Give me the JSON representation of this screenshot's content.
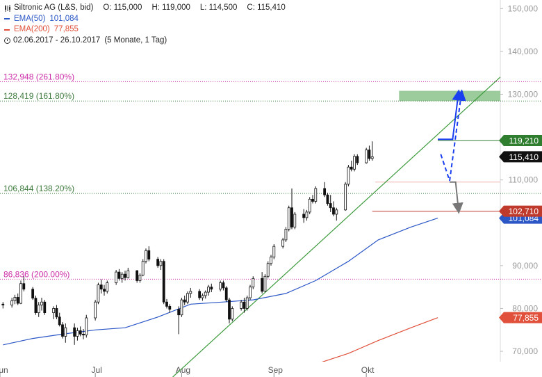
{
  "header": {
    "title": "Siltronic AG (L&S, bid)",
    "ohlc": {
      "open": "O: 115,000",
      "high": "H: 119,000",
      "low": "L: 114,500",
      "close": "C: 115,410"
    },
    "ema50": {
      "label": "EMA(50)",
      "value": "101,084",
      "color": "#2a56c6"
    },
    "ema200": {
      "label": "EMA(200)",
      "value": "77,855",
      "color": "#e0503a"
    },
    "date_range": "02.06.2017 - 26.10.2017",
    "period": "(5 Monate, 1 Tag)"
  },
  "chart_data": {
    "type": "candlestick",
    "ylim": [
      64000,
      152000
    ],
    "y_ticks": [
      {
        "value": 150000,
        "label": "150,000"
      },
      {
        "value": 140000,
        "label": "140,000"
      },
      {
        "value": 130000,
        "label": "130,000"
      },
      {
        "value": 110000,
        "label": "110,000"
      },
      {
        "value": 90000,
        "label": "90,000"
      },
      {
        "value": 80000,
        "label": "80,000"
      },
      {
        "value": 70000,
        "label": "70,000"
      }
    ],
    "x_ticks": [
      {
        "date": "2017-06-01",
        "label": "Jun"
      },
      {
        "date": "2017-07-03",
        "label": "Jul"
      },
      {
        "date": "2017-08-01",
        "label": "Aug"
      },
      {
        "date": "2017-09-01",
        "label": "Sep"
      },
      {
        "date": "2017-10-02",
        "label": "Okt"
      }
    ],
    "date_range": [
      "2017-06-01",
      "2017-11-16"
    ],
    "candles_start": "2017-06-02",
    "candles": [
      [
        81000,
        81500,
        80000,
        80800
      ],
      [
        80800,
        82500,
        80200,
        81800
      ],
      [
        81800,
        83200,
        81000,
        82600
      ],
      [
        82600,
        83500,
        80800,
        81200
      ],
      [
        81200,
        86500,
        81000,
        85800
      ],
      [
        85800,
        87500,
        84000,
        84500
      ],
      [
        84500,
        85000,
        82000,
        82400
      ],
      [
        82400,
        83000,
        78500,
        79000
      ],
      [
        79000,
        81500,
        78000,
        80800
      ],
      [
        80800,
        82500,
        79500,
        81500
      ],
      [
        81500,
        82000,
        78500,
        79000
      ],
      [
        79000,
        80500,
        77500,
        80000
      ],
      [
        80000,
        80800,
        77500,
        78000
      ],
      [
        78000,
        79000,
        75800,
        76200
      ],
      [
        76200,
        76800,
        73000,
        73500
      ],
      [
        73500,
        76500,
        72000,
        75500
      ],
      [
        75500,
        76500,
        71500,
        73500
      ],
      [
        73500,
        75500,
        72500,
        74800
      ],
      [
        74800,
        75800,
        73500,
        74000
      ],
      [
        74000,
        75200,
        72800,
        73800
      ],
      [
        73800,
        78500,
        73200,
        77800
      ],
      [
        77800,
        82000,
        77200,
        81500
      ],
      [
        81500,
        86000,
        81000,
        85500
      ],
      [
        85500,
        86800,
        83500,
        84500
      ],
      [
        84500,
        85500,
        83000,
        84000
      ],
      [
        84000,
        86500,
        83500,
        86000
      ],
      [
        86000,
        89000,
        85500,
        88500
      ],
      [
        88500,
        89200,
        86500,
        87000
      ],
      [
        87000,
        88500,
        86000,
        88000
      ],
      [
        88000,
        88800,
        86500,
        87200
      ],
      [
        87200,
        89500,
        87000,
        88800
      ],
      [
        88800,
        89000,
        86000,
        86500
      ],
      [
        86500,
        88200,
        86000,
        87800
      ],
      [
        87800,
        91500,
        87500,
        91000
      ],
      [
        91000,
        94000,
        90500,
        93500
      ],
      [
        93500,
        94500,
        91000,
        91500
      ],
      [
        91500,
        92000,
        89500,
        90000
      ],
      [
        90000,
        91500,
        89000,
        91000
      ],
      [
        91000,
        91500,
        81000,
        81500
      ],
      [
        81500,
        82200,
        80000,
        80500
      ],
      [
        80500,
        81000,
        79000,
        79800
      ],
      [
        79800,
        80500,
        74000,
        78500
      ],
      [
        78500,
        82500,
        78000,
        82000
      ],
      [
        82000,
        83000,
        80800,
        81500
      ],
      [
        81500,
        84000,
        81000,
        83500
      ],
      [
        83500,
        84800,
        82500,
        84000
      ],
      [
        84000,
        84500,
        82000,
        82500
      ],
      [
        82500,
        83500,
        81800,
        83000
      ],
      [
        83000,
        84200,
        82300,
        83800
      ],
      [
        83800,
        85500,
        83000,
        85000
      ],
      [
        85000,
        85800,
        83800,
        84500
      ],
      [
        84500,
        86500,
        84000,
        86000
      ],
      [
        86000,
        86500,
        84200,
        84800
      ],
      [
        84800,
        85200,
        81500,
        82000
      ],
      [
        82000,
        82500,
        76500,
        77500
      ],
      [
        77500,
        80500,
        77000,
        80000
      ],
      [
        80000,
        82000,
        79500,
        81500
      ],
      [
        81500,
        82500,
        79000,
        80000
      ],
      [
        80000,
        83000,
        79500,
        82500
      ],
      [
        82500,
        85500,
        82000,
        85000
      ],
      [
        85000,
        87500,
        84500,
        87000
      ],
      [
        87000,
        88500,
        83500,
        84000
      ],
      [
        84000,
        88000,
        83800,
        87500
      ],
      [
        87500,
        91000,
        87000,
        90500
      ],
      [
        90500,
        92500,
        90000,
        92000
      ],
      [
        92000,
        95000,
        91500,
        94500
      ],
      [
        94500,
        96500,
        94000,
        96000
      ],
      [
        96000,
        99000,
        95500,
        98500
      ],
      [
        98500,
        104000,
        98000,
        103500
      ],
      [
        103500,
        108000,
        98500,
        99000
      ],
      [
        99000,
        102500,
        98500,
        102000
      ],
      [
        102000,
        103200,
        100000,
        101200
      ],
      [
        101200,
        103000,
        100500,
        102500
      ],
      [
        102500,
        106000,
        102000,
        105500
      ],
      [
        105500,
        106500,
        104500,
        105000
      ],
      [
        105000,
        108500,
        104500,
        108000
      ],
      [
        108000,
        109500,
        106000,
        106500
      ],
      [
        106500,
        107000,
        104000,
        104500
      ],
      [
        104500,
        106500,
        102500,
        103500
      ],
      [
        103500,
        105000,
        101500,
        102000
      ],
      [
        102000,
        103500,
        100500,
        103000
      ],
      [
        103000,
        109500,
        102800,
        109000
      ],
      [
        109000,
        113500,
        108500,
        113000
      ],
      [
        113000,
        114500,
        112000,
        112500
      ],
      [
        112500,
        116000,
        112000,
        115500
      ],
      [
        115500,
        116000,
        113500,
        114000
      ],
      [
        114000,
        117500,
        113800,
        117000
      ],
      [
        117000,
        118000,
        114500,
        115000
      ],
      [
        115000,
        119000,
        114500,
        115410
      ]
    ],
    "ema50": [
      [
        "2017-06-02",
        71500
      ],
      [
        "2017-06-12",
        73000
      ],
      [
        "2017-06-22",
        74000
      ],
      [
        "2017-07-03",
        75000
      ],
      [
        "2017-07-13",
        75500
      ],
      [
        "2017-07-24",
        78000
      ],
      [
        "2017-08-04",
        81000
      ],
      [
        "2017-08-15",
        81500
      ],
      [
        "2017-08-25",
        82000
      ],
      [
        "2017-09-05",
        83500
      ],
      [
        "2017-09-15",
        86500
      ],
      [
        "2017-09-26",
        91000
      ],
      [
        "2017-10-06",
        96000
      ],
      [
        "2017-10-17",
        99000
      ],
      [
        "2017-10-26",
        101084
      ]
    ],
    "ema200": [
      [
        "2017-08-20",
        64000
      ],
      [
        "2017-09-01",
        65000
      ],
      [
        "2017-09-15",
        67000
      ],
      [
        "2017-09-26",
        69500
      ],
      [
        "2017-10-06",
        72500
      ],
      [
        "2017-10-17",
        75500
      ],
      [
        "2017-10-26",
        77855
      ]
    ],
    "trendline": {
      "start": [
        "2017-07-29",
        64000
      ],
      "end": [
        "2017-11-16",
        134000
      ],
      "color": "#3c9a3c"
    },
    "fib_levels": [
      {
        "label": "132,948 (261.80%)",
        "value": 132948,
        "color": "#cc2fa9"
      },
      {
        "label": "128,419 (161.80%)",
        "value": 128419,
        "color": "#3f7b3f"
      },
      {
        "label": "106,844 (138.20%)",
        "value": 106844,
        "color": "#3f7b3f"
      },
      {
        "label": "86,836 (200.00%)",
        "value": 86836,
        "color": "#cc2fa9"
      }
    ],
    "target_zone": {
      "from_date": "2017-10-13",
      "to_date": "2017-11-16",
      "low": 128419,
      "high": 130800,
      "color": "#9ccb9c"
    },
    "horizontal_lines": [
      {
        "from_date": "2017-10-26",
        "value": 119210,
        "color": "#2f7d2f"
      },
      {
        "from_date": "2017-10-04",
        "value": 102710,
        "color": "#c03a2b"
      },
      {
        "from_date": "2017-10-05",
        "value": 109500,
        "color": "#f0b4b4"
      }
    ],
    "price_badges": [
      {
        "label": "119,210",
        "value": 119210,
        "color": "#2f7d2f"
      },
      {
        "label": "115,410",
        "value": 115410,
        "color": "#111111"
      },
      {
        "label": "101,084",
        "value": 101084,
        "color": "#2a56c6"
      },
      {
        "label": "102,710",
        "value": 102710,
        "color": "#c03a2b"
      },
      {
        "label": "77,855",
        "value": 77855,
        "color": "#e0503a"
      }
    ],
    "annotations": {
      "blue_solid": [
        [
          "2017-10-26",
          119500
        ],
        [
          "2017-10-31",
          119500
        ],
        [
          "2017-11-02",
          130500
        ]
      ],
      "blue_dashed": [
        [
          "2017-10-27",
          116000
        ],
        [
          "2017-10-30",
          109800
        ],
        [
          "2017-11-03",
          130500
        ]
      ],
      "gray_arrow": [
        [
          "2017-10-30",
          109500
        ],
        [
          "2017-11-01",
          109500
        ],
        [
          "2017-11-02",
          102700
        ]
      ]
    }
  }
}
